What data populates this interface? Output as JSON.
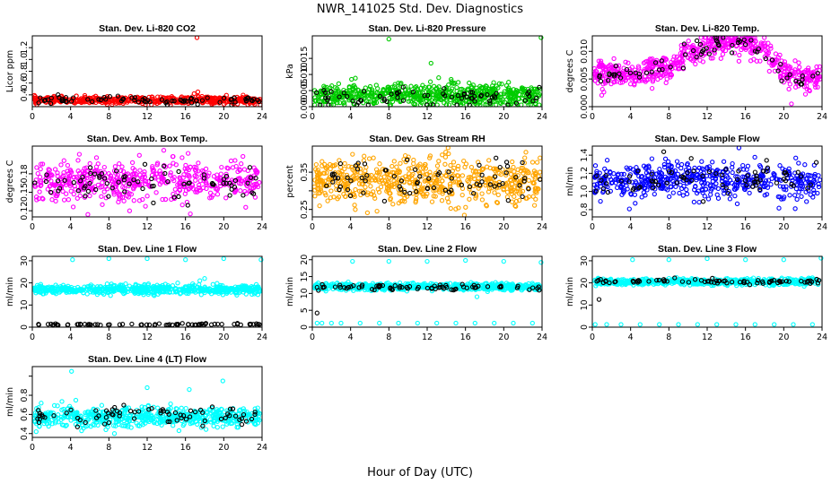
{
  "figure": {
    "title": "NWR_141025  Std. Dev. Diagnostics",
    "xlabel": "Hour of Day (UTC)"
  },
  "chart_data": [
    {
      "type": "scatter",
      "title": "Stan. Dev. Li-820 CO2",
      "ylabel": "Licor ppm",
      "xlim": [
        0,
        24
      ],
      "ylim": [
        0.2,
        1.4
      ],
      "x_ticks": [
        0,
        4,
        8,
        12,
        16,
        20,
        24
      ],
      "y_ticks": [
        0.4,
        0.6,
        0.8,
        1.0,
        1.2
      ],
      "y_tick_labels": [
        "0.4",
        "0.6",
        "0.8",
        "1.0",
        "1.2"
      ],
      "series": [
        {
          "color": "#ff0000",
          "n": 520,
          "base": [
            [
              0,
              0.31
            ],
            [
              24,
              0.31
            ]
          ],
          "spread": 0.03,
          "extra": [
            [
              17.2,
              1.38
            ],
            [
              17.3,
              0.45
            ],
            [
              16.9,
              0.42
            ],
            [
              23.8,
              0.23
            ]
          ]
        },
        {
          "color": "#000000",
          "n": 75,
          "base": [
            [
              0,
              0.31
            ],
            [
              24,
              0.31
            ]
          ],
          "spread": 0.03
        }
      ]
    },
    {
      "type": "scatter",
      "title": "Stan. Dev. Li-820 Pressure",
      "ylabel": "kPa",
      "xlim": [
        0,
        24
      ],
      "ylim": [
        0,
        0.022
      ],
      "x_ticks": [
        0,
        4,
        8,
        12,
        16,
        20,
        24
      ],
      "y_ticks": [
        0,
        0.005,
        0.01,
        0.015
      ],
      "y_tick_labels": [
        "0.000",
        "0.005",
        "0.010",
        "0.015"
      ],
      "series": [
        {
          "color": "#00cc00",
          "n": 650,
          "base": [
            [
              0,
              0.0035
            ],
            [
              24,
              0.0035
            ]
          ],
          "spread": 0.0017,
          "extra": [
            [
              8,
              0.021
            ],
            [
              23.9,
              0.022
            ],
            [
              12.4,
              0.0135
            ],
            [
              13.2,
              0.009
            ],
            [
              14.5,
              0.0085
            ],
            [
              4.1,
              0.0085
            ]
          ]
        },
        {
          "color": "#000000",
          "n": 70,
          "base": [
            [
              0,
              0.0028
            ],
            [
              24,
              0.0028
            ]
          ],
          "spread": 0.0015
        }
      ]
    },
    {
      "type": "scatter",
      "title": "Stan. Dev. Li-820 Temp.",
      "ylabel": "degrees C",
      "xlim": [
        0,
        24
      ],
      "ylim": [
        0,
        0.0128
      ],
      "x_ticks": [
        0,
        4,
        8,
        12,
        16,
        20,
        24
      ],
      "y_ticks": [
        0,
        0.005,
        0.01
      ],
      "y_tick_labels": [
        "0.000",
        "0.005",
        "0.010"
      ],
      "series": [
        {
          "color": "#ff00ff",
          "n": 600,
          "base": [
            [
              0,
              0.0062
            ],
            [
              3,
              0.0058
            ],
            [
              6,
              0.0062
            ],
            [
              8,
              0.0068
            ],
            [
              10,
              0.0098
            ],
            [
              13,
              0.0115
            ],
            [
              16,
              0.0118
            ],
            [
              18,
              0.0105
            ],
            [
              19.5,
              0.0068
            ],
            [
              21,
              0.0052
            ],
            [
              24,
              0.0048
            ]
          ],
          "spread": 0.0012,
          "extra": [
            [
              20.8,
              0.0005
            ]
          ]
        },
        {
          "color": "#000000",
          "n": 70,
          "base": [
            [
              0,
              0.006
            ],
            [
              3,
              0.0057
            ],
            [
              6,
              0.0061
            ],
            [
              8,
              0.0067
            ],
            [
              10,
              0.0096
            ],
            [
              13,
              0.0112
            ],
            [
              16,
              0.0116
            ],
            [
              18,
              0.0102
            ],
            [
              19.5,
              0.0066
            ],
            [
              21,
              0.005
            ],
            [
              24,
              0.0046
            ]
          ],
          "spread": 0.0011
        }
      ]
    },
    {
      "type": "scatter",
      "title": "Stan. Dev. Amb. Box Temp.",
      "ylabel": "degrees C",
      "xlim": [
        0,
        24
      ],
      "ylim": [
        0.11,
        0.225
      ],
      "x_ticks": [
        0,
        4,
        8,
        12,
        16,
        20,
        24
      ],
      "y_ticks": [
        0.12,
        0.15,
        0.18
      ],
      "y_tick_labels": [
        "0.12",
        "0.15",
        "0.18"
      ],
      "series": [
        {
          "color": "#ff00ff",
          "n": 520,
          "base": [
            [
              0,
              0.168
            ],
            [
              24,
              0.168
            ]
          ],
          "spread": 0.016
        },
        {
          "color": "#000000",
          "n": 75,
          "base": [
            [
              0,
              0.166
            ],
            [
              24,
              0.166
            ]
          ],
          "spread": 0.016
        }
      ]
    },
    {
      "type": "scatter",
      "title": "Stan. Dev. Gas Stream RH",
      "ylabel": "percent",
      "xlim": [
        0,
        24
      ],
      "ylim": [
        0.23,
        0.42
      ],
      "x_ticks": [
        0,
        4,
        8,
        12,
        16,
        20,
        24
      ],
      "y_ticks": [
        0.25,
        0.3,
        0.35
      ],
      "y_tick_labels": [
        "0.25",
        "",
        "0.35"
      ],
      "series": [
        {
          "color": "#ffa500",
          "n": 600,
          "base": [
            [
              0,
              0.325
            ],
            [
              24,
              0.325
            ]
          ],
          "spread": 0.03
        },
        {
          "color": "#000000",
          "n": 75,
          "base": [
            [
              0,
              0.325
            ],
            [
              24,
              0.325
            ]
          ],
          "spread": 0.028
        }
      ]
    },
    {
      "type": "scatter",
      "title": "Stan. Dev. Sample Flow",
      "ylabel": "ml/min",
      "xlim": [
        0,
        24
      ],
      "ylim": [
        0.72,
        1.5
      ],
      "x_ticks": [
        0,
        4,
        8,
        12,
        16,
        20,
        24
      ],
      "y_ticks": [
        0.8,
        1.0,
        1.2,
        1.4
      ],
      "y_tick_labels": [
        "0.8",
        "1.0",
        "1.2",
        "1.4"
      ],
      "series": [
        {
          "color": "#0000ff",
          "n": 520,
          "base": [
            [
              0,
              1.12
            ],
            [
              24,
              1.12
            ]
          ],
          "spread": 0.1
        },
        {
          "color": "#000000",
          "n": 75,
          "base": [
            [
              0,
              1.14
            ],
            [
              24,
              1.14
            ]
          ],
          "spread": 0.09
        }
      ]
    },
    {
      "type": "scatter",
      "title": "Stan. Dev. Line 1 Flow",
      "ylabel": "ml/min",
      "xlim": [
        0,
        24
      ],
      "ylim": [
        0,
        32
      ],
      "x_ticks": [
        0,
        4,
        8,
        12,
        16,
        20,
        24
      ],
      "y_ticks": [
        0,
        10,
        20,
        30
      ],
      "y_tick_labels": [
        "0",
        "10",
        "20",
        "30"
      ],
      "series": [
        {
          "color": "#00ffff",
          "n": 650,
          "base": [
            [
              0,
              17
            ],
            [
              24,
              17
            ]
          ],
          "spread": 1.0,
          "extra": [
            [
              4.2,
              30.5
            ],
            [
              8,
              31
            ],
            [
              12,
              31
            ],
            [
              16,
              30.5
            ],
            [
              20,
              31
            ],
            [
              23.9,
              30.5
            ],
            [
              18,
              22
            ],
            [
              17.5,
              21
            ]
          ]
        },
        {
          "color": "#000000",
          "n": 75,
          "base": [
            [
              0,
              1.2
            ],
            [
              24,
              1.2
            ]
          ],
          "spread": 0.2
        }
      ]
    },
    {
      "type": "scatter",
      "title": "Stan. Dev. Line 2 Flow",
      "ylabel": "ml/min",
      "xlim": [
        0,
        24
      ],
      "ylim": [
        0,
        21
      ],
      "x_ticks": [
        0,
        4,
        8,
        12,
        16,
        20,
        24
      ],
      "y_ticks": [
        0,
        5,
        10,
        15,
        20
      ],
      "y_tick_labels": [
        "0",
        "5",
        "10",
        "15",
        "20"
      ],
      "series": [
        {
          "color": "#00ffff",
          "n": 650,
          "base": [
            [
              0,
              12
            ],
            [
              24,
              12
            ]
          ],
          "spread": 0.5,
          "extra": [
            [
              0.5,
              1.2
            ],
            [
              1,
              1.2
            ],
            [
              2,
              1.2
            ],
            [
              3,
              1.2
            ],
            [
              5,
              1.2
            ],
            [
              7,
              1.2
            ],
            [
              9,
              1.2
            ],
            [
              11,
              1.2
            ],
            [
              13,
              1.2
            ],
            [
              15,
              1.2
            ],
            [
              17,
              1.2
            ],
            [
              19,
              1.2
            ],
            [
              21,
              1.2
            ],
            [
              23,
              1.2
            ],
            [
              4.2,
              19.5
            ],
            [
              8,
              19.5
            ],
            [
              12,
              19.5
            ],
            [
              16,
              19.8
            ],
            [
              20,
              19.5
            ],
            [
              23.9,
              19.2
            ],
            [
              18.2,
              13
            ],
            [
              17.2,
              9
            ]
          ]
        },
        {
          "color": "#000000",
          "n": 75,
          "base": [
            [
              0,
              11.8
            ],
            [
              24,
              11.8
            ]
          ],
          "spread": 0.45,
          "extra": [
            [
              0.5,
              4.2
            ]
          ]
        }
      ]
    },
    {
      "type": "scatter",
      "title": "Stan. Dev. Line 3 Flow",
      "ylabel": "ml/min",
      "xlim": [
        0,
        24
      ],
      "ylim": [
        0,
        32
      ],
      "x_ticks": [
        0,
        4,
        8,
        12,
        16,
        20,
        24
      ],
      "y_ticks": [
        0,
        10,
        20,
        30
      ],
      "y_tick_labels": [
        "0",
        "10",
        "20",
        "30"
      ],
      "series": [
        {
          "color": "#00ffff",
          "n": 650,
          "base": [
            [
              0,
              20.5
            ],
            [
              24,
              20.5
            ]
          ],
          "spread": 0.7,
          "extra": [
            [
              0.3,
              1.2
            ],
            [
              1.5,
              1.2
            ],
            [
              3,
              1.2
            ],
            [
              5,
              1.2
            ],
            [
              7,
              1.2
            ],
            [
              9,
              1.2
            ],
            [
              11,
              1.2
            ],
            [
              13,
              1.2
            ],
            [
              15,
              1.2
            ],
            [
              17,
              1.2
            ],
            [
              19,
              1.2
            ],
            [
              21,
              1.2
            ],
            [
              23,
              1.2
            ],
            [
              4.2,
              30.5
            ],
            [
              8,
              30.5
            ],
            [
              12,
              31
            ],
            [
              16,
              30.5
            ],
            [
              20,
              30.5
            ],
            [
              23.9,
              31.5
            ]
          ]
        },
        {
          "color": "#000000",
          "n": 75,
          "base": [
            [
              0,
              20.8
            ],
            [
              24,
              20.8
            ]
          ],
          "spread": 0.6,
          "extra": [
            [
              0.7,
              12.5
            ]
          ]
        }
      ]
    },
    {
      "type": "scatter",
      "title": "Stan. Dev. Line 4 (LT) Flow",
      "ylabel": "ml/min",
      "xlim": [
        0,
        24
      ],
      "ylim": [
        0.36,
        1.1
      ],
      "x_ticks": [
        0,
        4,
        8,
        12,
        16,
        20,
        24
      ],
      "y_ticks": [
        0.4,
        0.6,
        0.8,
        1.0
      ],
      "y_tick_labels": [
        "0.4",
        "0.6",
        "0.8",
        ""
      ],
      "series": [
        {
          "color": "#00ffff",
          "n": 600,
          "base": [
            [
              0,
              0.57
            ],
            [
              24,
              0.57
            ]
          ],
          "spread": 0.05,
          "extra": [
            [
              4.1,
              1.05
            ],
            [
              19.9,
              0.95
            ],
            [
              12,
              0.88
            ],
            [
              16.4,
              0.86
            ],
            [
              0.4,
              0.42
            ]
          ]
        },
        {
          "color": "#000000",
          "n": 75,
          "base": [
            [
              0,
              0.58
            ],
            [
              24,
              0.58
            ]
          ],
          "spread": 0.05
        }
      ]
    }
  ]
}
